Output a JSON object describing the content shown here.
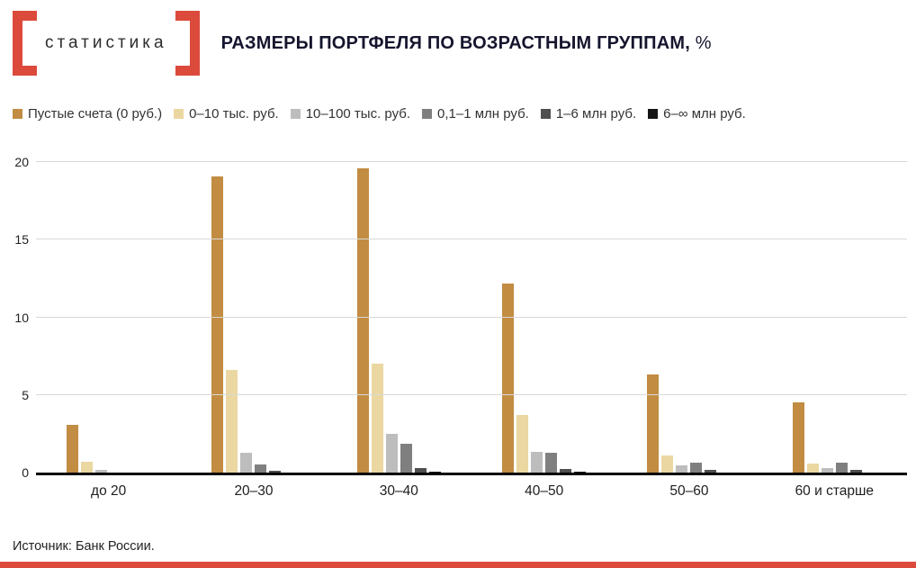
{
  "brand": {
    "logo_text": "статистика"
  },
  "header": {
    "title_main": "РАЗМЕРЫ ПОРТФЕЛЯ ПО ВОЗРАСТНЫМ ГРУППАМ,",
    "title_unit": " %"
  },
  "colors": {
    "accent": "#dc4a3c",
    "grid": "#d8d8d8",
    "axis": "#000000"
  },
  "chart_data": {
    "type": "bar",
    "title": "РАЗМЕРЫ ПОРТФЕЛЯ ПО ВОЗРАСТНЫМ ГРУППАМ, %",
    "categories": [
      "до 20",
      "20–30",
      "30–40",
      "40–50",
      "50–60",
      "60 и старше"
    ],
    "series": [
      {
        "name": "Пустые счета (0 руб.)",
        "color": "#c28c42",
        "values": [
          3.1,
          19.1,
          19.6,
          12.2,
          6.3,
          4.5
        ]
      },
      {
        "name": "0–10 тыс. руб.",
        "color": "#ebd7a1",
        "values": [
          0.7,
          6.6,
          7.0,
          3.7,
          1.1,
          0.6
        ]
      },
      {
        "name": "10–100 тыс. руб.",
        "color": "#bdbdbd",
        "values": [
          0.15,
          1.3,
          2.5,
          1.35,
          0.45,
          0.3
        ]
      },
      {
        "name": "0,1–1 млн руб.",
        "color": "#7f7f7f",
        "values": [
          0,
          0.5,
          1.85,
          1.3,
          0.65,
          0.65
        ]
      },
      {
        "name": "1–6 млн руб.",
        "color": "#4f4f4f",
        "values": [
          0,
          0.1,
          0.3,
          0.25,
          0.2,
          0.15
        ]
      },
      {
        "name": "6–∞ млн руб.",
        "color": "#151515",
        "values": [
          0,
          0,
          0.05,
          0.05,
          0,
          0
        ]
      }
    ],
    "ylim": [
      0,
      20
    ],
    "yticks": [
      0,
      5,
      10,
      15,
      20
    ],
    "grid": true,
    "legend_position": "top"
  },
  "footer": {
    "source": "Источник: Банк России."
  }
}
